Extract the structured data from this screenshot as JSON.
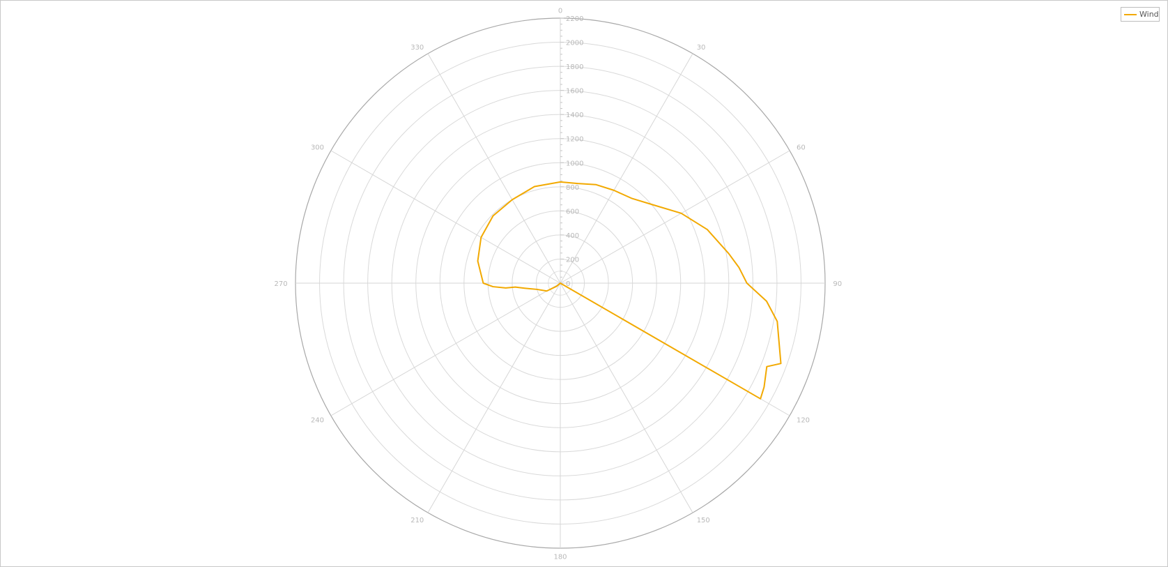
{
  "chart_data": {
    "type": "line",
    "polar": true,
    "angle_ticks": [
      0,
      30,
      60,
      90,
      120,
      150,
      180,
      210,
      240,
      270,
      300,
      330
    ],
    "angle_labels": [
      "0",
      "30",
      "60",
      "90",
      "120",
      "150",
      "180",
      "210",
      "240",
      "270",
      "300",
      "330"
    ],
    "radial_ticks": [
      0,
      200,
      400,
      600,
      800,
      1000,
      1200,
      1400,
      1600,
      1800,
      2000,
      2200
    ],
    "radial_labels": [
      "0",
      "200",
      "400",
      "600",
      "800",
      "1000",
      "1200",
      "1400",
      "1600",
      "1800",
      "2000",
      "2200"
    ],
    "rlim": [
      0,
      2200
    ],
    "grid": true,
    "legend_position": "top-right",
    "series": [
      {
        "name": "Wind",
        "color": "#f2a900",
        "points": [
          {
            "angle": 0,
            "r": 840
          },
          {
            "angle": 10,
            "r": 840
          },
          {
            "angle": 20,
            "r": 870
          },
          {
            "angle": 30,
            "r": 890
          },
          {
            "angle": 40,
            "r": 920
          },
          {
            "angle": 50,
            "r": 1010
          },
          {
            "angle": 60,
            "r": 1160
          },
          {
            "angle": 70,
            "r": 1300
          },
          {
            "angle": 80,
            "r": 1420
          },
          {
            "angle": 85,
            "r": 1490
          },
          {
            "angle": 90,
            "r": 1550
          },
          {
            "angle": 95,
            "r": 1720
          },
          {
            "angle": 100,
            "r": 1830
          },
          {
            "angle": 110,
            "r": 1950
          },
          {
            "angle": 112,
            "r": 1850
          },
          {
            "angle": 117,
            "r": 1900
          },
          {
            "angle": 120,
            "r": 1920
          },
          {
            "angle": 185,
            "r": 0
          },
          {
            "angle": 230,
            "r": 40
          },
          {
            "angle": 240,
            "r": 130
          },
          {
            "angle": 255,
            "r": 200
          },
          {
            "angle": 262,
            "r": 300
          },
          {
            "angle": 265,
            "r": 375
          },
          {
            "angle": 265,
            "r": 455
          },
          {
            "angle": 267,
            "r": 560
          },
          {
            "angle": 270,
            "r": 640
          },
          {
            "angle": 285,
            "r": 710
          },
          {
            "angle": 300,
            "r": 760
          },
          {
            "angle": 315,
            "r": 790
          },
          {
            "angle": 330,
            "r": 800
          },
          {
            "angle": 345,
            "r": 830
          },
          {
            "angle": 360,
            "r": 840
          }
        ]
      }
    ]
  },
  "legend": {
    "label": "Wind",
    "color": "#f2a900"
  }
}
